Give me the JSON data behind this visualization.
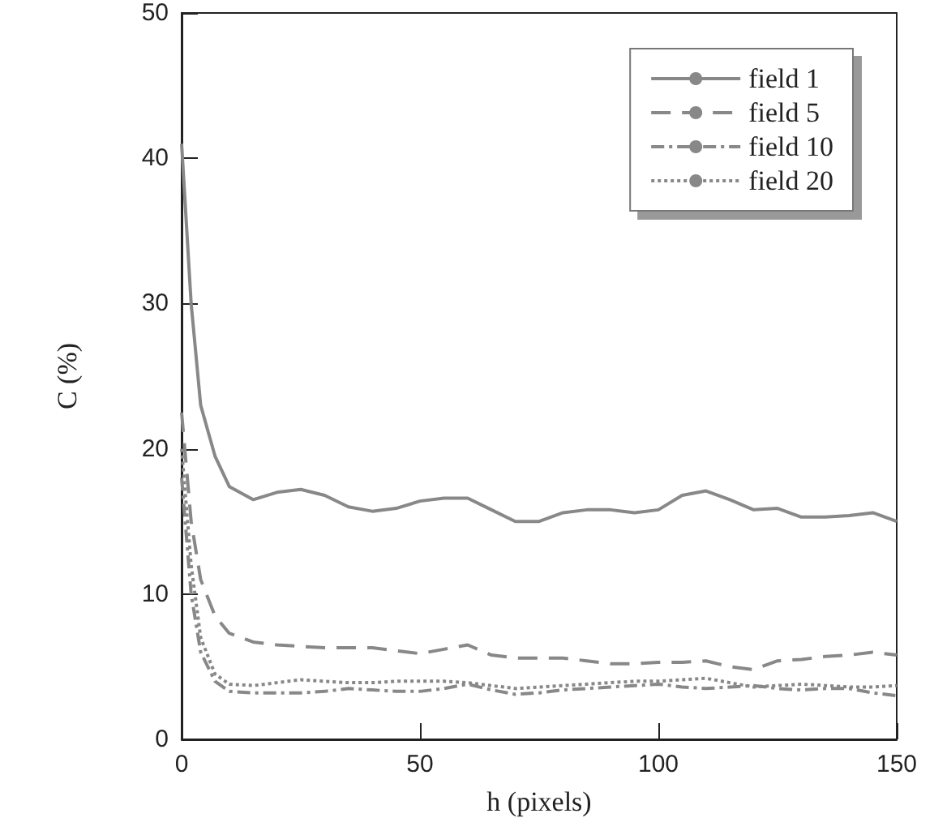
{
  "chart_data": {
    "type": "line",
    "xlabel": "h (pixels)",
    "ylabel": "C (%)",
    "xlim": [
      0,
      150
    ],
    "xticks": [
      0,
      50,
      100,
      150
    ],
    "ylim": [
      0,
      50
    ],
    "yticks": [
      0,
      10,
      20,
      30,
      40,
      50
    ],
    "grid": false,
    "legend": "top right",
    "marker": "none",
    "x": [
      0,
      2,
      4,
      7,
      10,
      15,
      20,
      25,
      30,
      35,
      40,
      45,
      50,
      55,
      60,
      65,
      70,
      75,
      80,
      85,
      90,
      95,
      100,
      105,
      110,
      115,
      120,
      125,
      130,
      135,
      140,
      145,
      150
    ],
    "series": [
      {
        "name": "field 1",
        "color": "#888888",
        "line_style": "solid",
        "values": [
          41,
          30,
          23,
          19.5,
          17.4,
          16.5,
          17,
          17.2,
          16.8,
          16,
          15.7,
          15.9,
          16.4,
          16.6,
          16.6,
          15.8,
          15,
          15,
          15.6,
          15.8,
          15.8,
          15.6,
          15.8,
          16.8,
          17.1,
          16.5,
          15.8,
          15.9,
          15.3,
          15.3,
          15.4,
          15.6,
          15
        ]
      },
      {
        "name": "field 5",
        "color": "#888888",
        "line_style": "dashed",
        "values": [
          22.5,
          15,
          11,
          8.5,
          7.3,
          6.7,
          6.5,
          6.4,
          6.3,
          6.3,
          6.3,
          6.1,
          5.9,
          6.2,
          6.5,
          5.8,
          5.6,
          5.6,
          5.6,
          5.4,
          5.2,
          5.2,
          5.3,
          5.3,
          5.4,
          5,
          4.8,
          5.4,
          5.5,
          5.7,
          5.8,
          6,
          5.8
        ]
      },
      {
        "name": "field 10",
        "color": "#888888",
        "line_style": "dashdot",
        "values": [
          18,
          10,
          6,
          4,
          3.3,
          3.2,
          3.2,
          3.2,
          3.3,
          3.5,
          3.4,
          3.3,
          3.3,
          3.5,
          3.8,
          3.4,
          3.1,
          3.2,
          3.4,
          3.5,
          3.6,
          3.7,
          3.8,
          3.6,
          3.5,
          3.6,
          3.7,
          3.5,
          3.4,
          3.5,
          3.5,
          3.2,
          3
        ]
      },
      {
        "name": "field 20",
        "color": "#888888",
        "line_style": "dotted",
        "values": [
          20,
          12,
          7,
          4.5,
          3.8,
          3.7,
          3.9,
          4.1,
          4,
          3.9,
          3.9,
          4,
          4,
          4,
          3.9,
          3.7,
          3.5,
          3.6,
          3.7,
          3.8,
          3.9,
          4,
          4,
          4.1,
          4.2,
          3.9,
          3.6,
          3.7,
          3.8,
          3.7,
          3.6,
          3.6,
          3.7
        ]
      }
    ]
  }
}
